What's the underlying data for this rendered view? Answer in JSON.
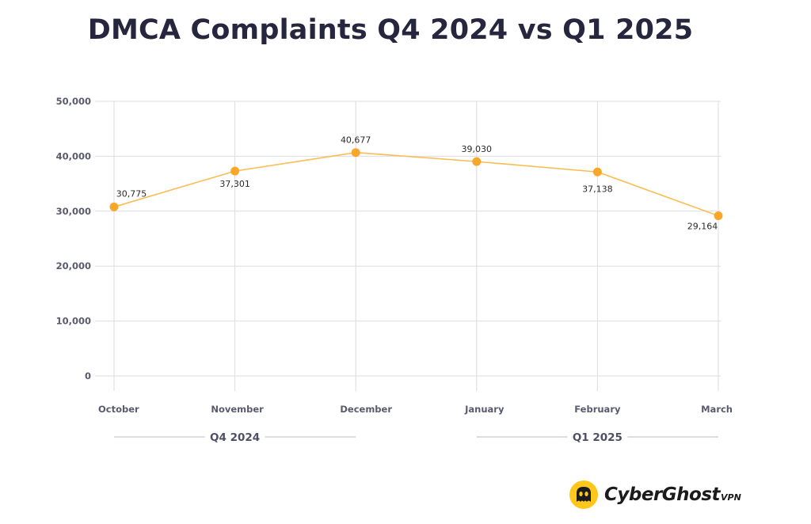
{
  "chart_data": {
    "type": "line",
    "title": "DMCA Complaints Q4 2024 vs Q1 2025",
    "categories": [
      "October",
      "November",
      "December",
      "January",
      "February",
      "March"
    ],
    "values": [
      30775,
      37301,
      40677,
      39030,
      37138,
      29164
    ],
    "value_labels": [
      "30,775",
      "37,301",
      "40,677",
      "39,030",
      "37,138",
      "29,164"
    ],
    "ylim": [
      0,
      50000
    ],
    "yticks": [
      0,
      10000,
      20000,
      30000,
      40000,
      50000
    ],
    "ytick_labels": [
      "0",
      "10,000",
      "20,000",
      "30,000",
      "40,000",
      "50,000"
    ],
    "xlabel": "",
    "ylabel": "",
    "grid": true,
    "legend": "none",
    "groups": [
      {
        "label": "Q4 2024",
        "from": 0,
        "to": 2
      },
      {
        "label": "Q1 2025",
        "from": 3,
        "to": 5
      }
    ],
    "colors": {
      "line": "#f9bd52",
      "marker": "#f9a72b",
      "grid": "#dcdce2",
      "group_rule": "#b8b8c6"
    }
  },
  "brand": {
    "name": "CyberGhost",
    "suffix": "VPN",
    "accent": "#ffc61b"
  }
}
